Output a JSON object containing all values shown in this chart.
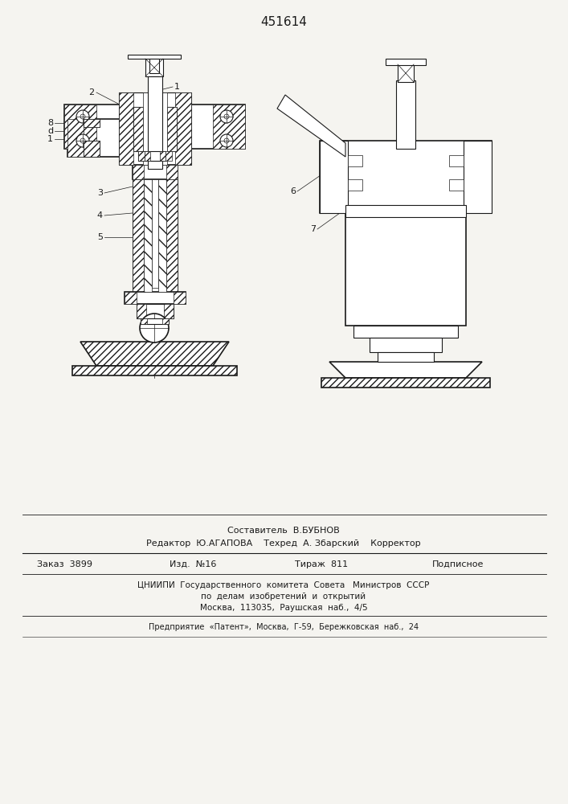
{
  "patent_number": "451614",
  "bg_color": "#f5f4f0",
  "line_color": "#1a1a1a",
  "footer_line1": "Составитель  В.БУБНОВ",
  "footer_line2": "Редактор  Ю.АГАПОВА    Техред  А. Збарский    Корректор",
  "footer_line3_parts": [
    "Заказ  3899",
    "Изд.  №16",
    "Тираж  811",
    "Подписное"
  ],
  "footer_line4": "ЦНИИПИ  Государственного  комитета  Совета   Министров  СССР",
  "footer_line5": "по  делам  изобретений  и  открытий",
  "footer_line6": "Москва,  113035,  Раушская  наб.,  4/5",
  "footer_line7": "Предприятие  «Патент»,  Москва,  Г-59,  Бережковская  наб.,  24"
}
